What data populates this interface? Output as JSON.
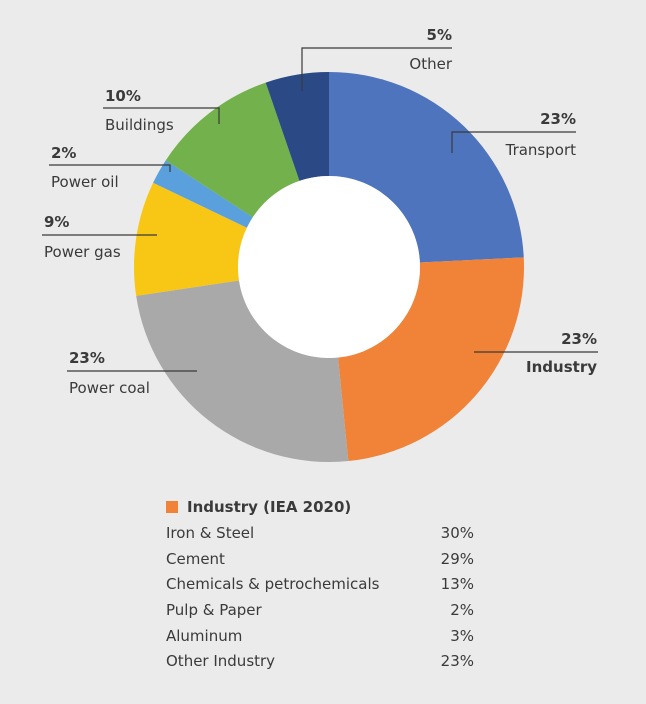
{
  "chart_data": {
    "type": "pie",
    "subtype": "donut",
    "slices": [
      {
        "label": "Transport",
        "value": 23,
        "value_label": "23%",
        "color": "#4e74bd"
      },
      {
        "label": "Industry",
        "value": 23,
        "value_label": "23%",
        "color": "#f08338"
      },
      {
        "label": "Power coal",
        "value": 23,
        "value_label": "23%",
        "color": "#a9a9a9"
      },
      {
        "label": "Power gas",
        "value": 9,
        "value_label": "9%",
        "color": "#f8c614"
      },
      {
        "label": "Power oil",
        "value": 2,
        "value_label": "2%",
        "color": "#5aa0dc"
      },
      {
        "label": "Buildings",
        "value": 10,
        "value_label": "10%",
        "color": "#72b14b"
      },
      {
        "label": "Other",
        "value": 5,
        "value_label": "5%",
        "color": "#2b4a85"
      }
    ]
  },
  "industry_breakdown": {
    "title": "Industry (IEA 2020)",
    "swatch_color": "#f08338",
    "rows": [
      {
        "label": "Iron & Steel",
        "value": "30%"
      },
      {
        "label": "Cement",
        "value": "29%"
      },
      {
        "label": "Chemicals & petrochemicals",
        "value": "13%"
      },
      {
        "label": "Pulp & Paper",
        "value": "2%"
      },
      {
        "label": "Aluminum",
        "value": "3%"
      },
      {
        "label": "Other Industry",
        "value": "23%"
      }
    ]
  }
}
